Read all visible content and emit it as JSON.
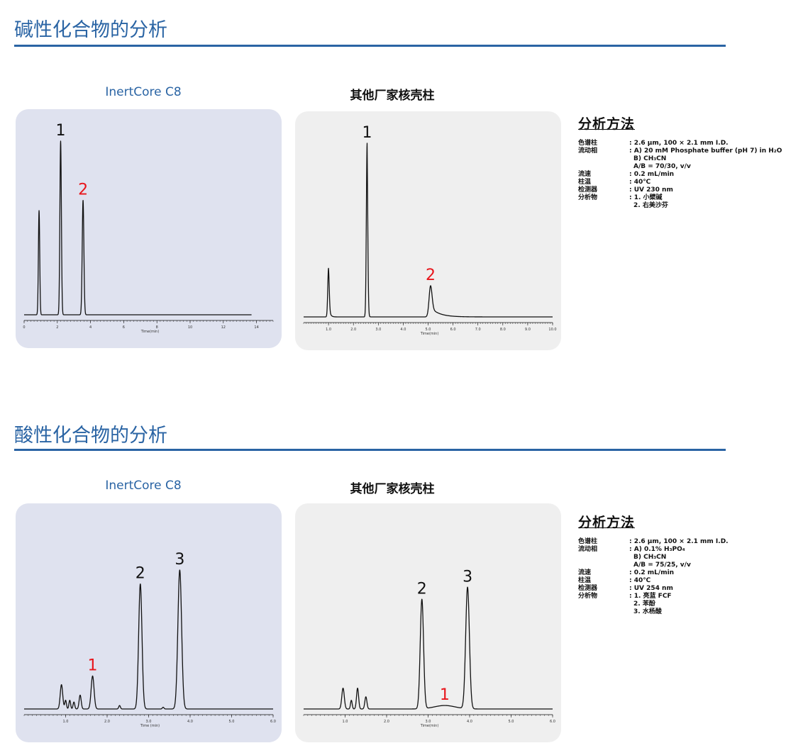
{
  "colors": {
    "accent": "#2a64a4",
    "highlight": "#e8151b",
    "trace": "#111111"
  },
  "sections": [
    {
      "title": "碱性化合物的分析",
      "labels": {
        "inertcore": "InertCore C8",
        "competitor": "其他厂家核壳柱"
      },
      "method": {
        "title": "分析方法",
        "rows": [
          {
            "key": "色谱柱",
            "lines": [
              ": 2.6 μm, 100 × 2.1 mm I.D."
            ]
          },
          {
            "key": "流动相",
            "lines": [
              ": A) 20 mM Phosphate buffer (pH 7) in H₂O",
              "B) CH₃CN",
              "A/B = 70/30, v/v"
            ]
          },
          {
            "key": "流速",
            "lines": [
              ": 0.2 mL/min"
            ]
          },
          {
            "key": "柱温",
            "lines": [
              ": 40℃"
            ]
          },
          {
            "key": "检测器",
            "lines": [
              ": UV 230 nm"
            ]
          },
          {
            "key": "分析物",
            "lines": [
              ": 1. 小檗碱",
              "2. 右美沙芬"
            ]
          }
        ]
      }
    },
    {
      "title": "酸性化合物的分析",
      "labels": {
        "inertcore": "InertCore C8",
        "competitor": "其他厂家核壳柱"
      },
      "method": {
        "title": "分析方法",
        "rows": [
          {
            "key": "色谱柱",
            "lines": [
              ": 2.6 μm, 100 × 2.1 mm I.D."
            ]
          },
          {
            "key": "流动相",
            "lines": [
              ": A) 0.1% H₃PO₄",
              "B) CH₃CN",
              "A/B = 75/25, v/v"
            ]
          },
          {
            "key": "流速",
            "lines": [
              ": 0.2 mL/min"
            ]
          },
          {
            "key": "柱温",
            "lines": [
              ": 40℃"
            ]
          },
          {
            "key": "检测器",
            "lines": [
              ": UV 254 nm"
            ]
          },
          {
            "key": "分析物",
            "lines": [
              ": 1. 亮蓝 FCF",
              "2. 苯酚",
              "3. 水杨酸"
            ]
          }
        ]
      }
    }
  ],
  "chart_data": [
    {
      "type": "line",
      "id": "basic-inertcore",
      "title": "InertCore C8",
      "xlabel": "Time(min)",
      "xlim": [
        0,
        15
      ],
      "xticks": [
        0,
        2,
        4,
        6,
        8,
        10,
        12,
        14
      ],
      "baseline_end": 13.7,
      "peaks": [
        {
          "t": 0.9,
          "h": 0.6,
          "w": 0.04,
          "tail": 0
        },
        {
          "t": 2.2,
          "h": 1.0,
          "w": 0.045,
          "tail": 0,
          "label": "1",
          "highlight": false
        },
        {
          "t": 3.55,
          "h": 0.66,
          "w": 0.05,
          "tail": 0,
          "label": "2",
          "highlight": true
        }
      ]
    },
    {
      "type": "line",
      "id": "basic-competitor",
      "title": "其他厂家核壳柱",
      "xlabel": "Time(min)",
      "xlim": [
        0,
        10.0
      ],
      "xticks": [
        1.0,
        2.0,
        3.0,
        4.0,
        5.0,
        6.0,
        7.0,
        8.0,
        9.0,
        10.0
      ],
      "xtick_labels": [
        "1.0",
        "2.0",
        "3.0",
        "4.0",
        "5.0",
        "6.0",
        "7.0",
        "8.0",
        "9.0",
        "10.0"
      ],
      "baseline_end": 10.0,
      "peaks": [
        {
          "t": 1.0,
          "h": 0.28,
          "w": 0.03,
          "tail": 0.05
        },
        {
          "t": 2.55,
          "h": 1.0,
          "w": 0.03,
          "tail": 0.02,
          "label": "1",
          "highlight": false
        },
        {
          "t": 5.1,
          "h": 0.18,
          "w": 0.06,
          "tail": 0.35,
          "label": "2",
          "highlight": true
        }
      ]
    },
    {
      "type": "line",
      "id": "acid-inertcore",
      "title": "InertCore C8",
      "xlabel": "Time (min)",
      "xlim": [
        0,
        6.0
      ],
      "xticks": [
        1.0,
        2.0,
        3.0,
        4.0,
        5.0,
        6.0
      ],
      "xtick_labels": [
        "1.0",
        "2.0",
        "3.0",
        "4.0",
        "5.0",
        "6.0"
      ],
      "baseline_end": 6.0,
      "peaks": [
        {
          "t": 0.9,
          "h": 0.14,
          "w": 0.03,
          "tail": 0
        },
        {
          "t": 1.0,
          "h": 0.05,
          "w": 0.02,
          "tail": 0
        },
        {
          "t": 1.1,
          "h": 0.05,
          "w": 0.02,
          "tail": 0
        },
        {
          "t": 1.2,
          "h": 0.04,
          "w": 0.02,
          "tail": 0
        },
        {
          "t": 1.35,
          "h": 0.08,
          "w": 0.025,
          "tail": 0
        },
        {
          "t": 1.65,
          "h": 0.19,
          "w": 0.035,
          "tail": 0,
          "label": "1",
          "highlight": true
        },
        {
          "t": 2.3,
          "h": 0.02,
          "w": 0.02,
          "tail": 0
        },
        {
          "t": 2.8,
          "h": 0.72,
          "w": 0.04,
          "tail": 0,
          "label": "2",
          "highlight": false
        },
        {
          "t": 3.35,
          "h": 0.01,
          "w": 0.02,
          "tail": 0
        },
        {
          "t": 3.75,
          "h": 0.8,
          "w": 0.045,
          "tail": 0,
          "label": "3",
          "highlight": false
        }
      ]
    },
    {
      "type": "line",
      "id": "acid-competitor",
      "title": "其他厂家核壳柱",
      "xlabel": "Time(min)",
      "xlim": [
        0,
        6.0
      ],
      "xticks": [
        1.0,
        2.0,
        3.0,
        4.0,
        5.0,
        6.0
      ],
      "xtick_labels": [
        "1.0",
        "2.0",
        "3.0",
        "4.0",
        "5.0",
        "6.0"
      ],
      "baseline_end": 6.0,
      "peaks": [
        {
          "t": 0.95,
          "h": 0.12,
          "w": 0.03,
          "tail": 0
        },
        {
          "t": 1.15,
          "h": 0.05,
          "w": 0.02,
          "tail": 0
        },
        {
          "t": 1.3,
          "h": 0.12,
          "w": 0.025,
          "tail": 0
        },
        {
          "t": 1.5,
          "h": 0.07,
          "w": 0.025,
          "tail": 0
        },
        {
          "t": 2.85,
          "h": 0.63,
          "w": 0.04,
          "tail": 0,
          "label": "2",
          "highlight": false
        },
        {
          "t": 3.4,
          "h": 0.02,
          "w": 0.25,
          "tail": 0,
          "label": "1",
          "highlight": true
        },
        {
          "t": 3.95,
          "h": 0.7,
          "w": 0.045,
          "tail": 0,
          "label": "3",
          "highlight": false
        }
      ]
    }
  ]
}
